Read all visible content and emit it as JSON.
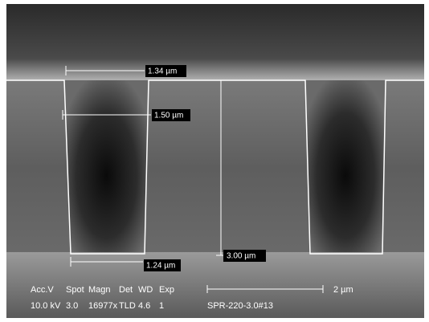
{
  "measurements": [
    {
      "label": "1.34 µm"
    },
    {
      "label": "1.50 µm"
    },
    {
      "label": "1.24 µm"
    },
    {
      "label": "3.00 µm"
    }
  ],
  "info": {
    "headers": [
      "Acc.V",
      "Spot",
      "Magn",
      "Det",
      "WD",
      "Exp"
    ],
    "values": [
      "10.0 kV",
      "3.0",
      "16977x",
      "TLD",
      "4.6",
      "1"
    ]
  },
  "scale_bar": "2 µm",
  "sample_id": "SPR-220-3.0#13"
}
